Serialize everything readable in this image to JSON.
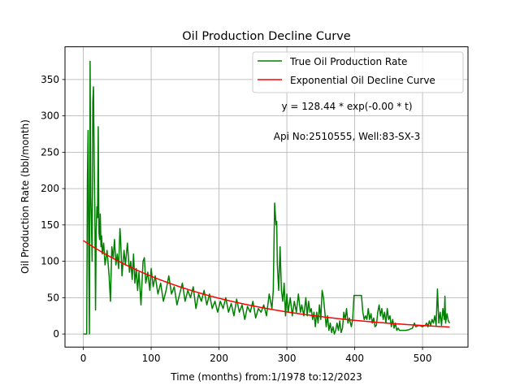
{
  "chart_data": {
    "type": "line",
    "title": "Oil Production Decline Curve",
    "xlabel": "Time (months) from:1/1978 to:12/2023",
    "ylabel": "Oil Production Rate (bbl/month)",
    "xlim": [
      -27,
      567
    ],
    "ylim": [
      -18,
      395
    ],
    "xticks": [
      0,
      100,
      200,
      300,
      400,
      500
    ],
    "yticks": [
      0,
      50,
      100,
      150,
      200,
      250,
      300,
      350
    ],
    "grid": true,
    "legend_position": "top-right",
    "annotations": [
      "y = 128.44 * exp(-0.00 * t)",
      "Api No:2510555, Well:83-SX-3"
    ],
    "series": [
      {
        "name": "True Oil Production Rate",
        "color": "#008000",
        "points": [
          [
            0,
            0
          ],
          [
            5,
            0
          ],
          [
            6,
            210
          ],
          [
            7,
            280
          ],
          [
            8,
            100
          ],
          [
            9,
            0
          ],
          [
            10,
            375
          ],
          [
            11,
            190
          ],
          [
            12,
            150
          ],
          [
            13,
            100
          ],
          [
            14,
            320
          ],
          [
            15,
            340
          ],
          [
            16,
            240
          ],
          [
            17,
            170
          ],
          [
            18,
            33
          ],
          [
            19,
            140
          ],
          [
            20,
            175
          ],
          [
            21,
            160
          ],
          [
            22,
            285
          ],
          [
            23,
            140
          ],
          [
            24,
            130
          ],
          [
            25,
            165
          ],
          [
            26,
            120
          ],
          [
            27,
            135
          ],
          [
            28,
            110
          ],
          [
            30,
            125
          ],
          [
            32,
            95
          ],
          [
            35,
            115
          ],
          [
            38,
            80
          ],
          [
            40,
            45
          ],
          [
            42,
            120
          ],
          [
            44,
            105
          ],
          [
            46,
            130
          ],
          [
            48,
            95
          ],
          [
            50,
            110
          ],
          [
            52,
            90
          ],
          [
            54,
            145
          ],
          [
            55,
            130
          ],
          [
            57,
            80
          ],
          [
            60,
            115
          ],
          [
            62,
            95
          ],
          [
            65,
            125
          ],
          [
            68,
            85
          ],
          [
            70,
            100
          ],
          [
            72,
            75
          ],
          [
            74,
            110
          ],
          [
            76,
            70
          ],
          [
            78,
            90
          ],
          [
            80,
            60
          ],
          [
            82,
            85
          ],
          [
            85,
            40
          ],
          [
            88,
            100
          ],
          [
            90,
            105
          ],
          [
            92,
            70
          ],
          [
            95,
            85
          ],
          [
            98,
            60
          ],
          [
            100,
            90
          ],
          [
            103,
            65
          ],
          [
            106,
            80
          ],
          [
            110,
            55
          ],
          [
            114,
            70
          ],
          [
            118,
            45
          ],
          [
            122,
            60
          ],
          [
            126,
            80
          ],
          [
            130,
            55
          ],
          [
            134,
            65
          ],
          [
            138,
            40
          ],
          [
            142,
            55
          ],
          [
            146,
            70
          ],
          [
            150,
            45
          ],
          [
            154,
            60
          ],
          [
            158,
            50
          ],
          [
            162,
            65
          ],
          [
            166,
            35
          ],
          [
            170,
            55
          ],
          [
            174,
            45
          ],
          [
            178,
            60
          ],
          [
            182,
            40
          ],
          [
            186,
            55
          ],
          [
            190,
            35
          ],
          [
            194,
            45
          ],
          [
            198,
            30
          ],
          [
            202,
            45
          ],
          [
            206,
            35
          ],
          [
            210,
            50
          ],
          [
            214,
            30
          ],
          [
            218,
            42
          ],
          [
            222,
            25
          ],
          [
            226,
            48
          ],
          [
            230,
            30
          ],
          [
            234,
            40
          ],
          [
            238,
            20
          ],
          [
            242,
            38
          ],
          [
            246,
            30
          ],
          [
            250,
            45
          ],
          [
            254,
            22
          ],
          [
            258,
            35
          ],
          [
            262,
            30
          ],
          [
            266,
            40
          ],
          [
            270,
            25
          ],
          [
            274,
            55
          ],
          [
            278,
            35
          ],
          [
            280,
            60
          ],
          [
            282,
            180
          ],
          [
            284,
            150
          ],
          [
            285,
            155
          ],
          [
            286,
            95
          ],
          [
            288,
            60
          ],
          [
            290,
            120
          ],
          [
            292,
            60
          ],
          [
            294,
            45
          ],
          [
            296,
            70
          ],
          [
            298,
            25
          ],
          [
            300,
            55
          ],
          [
            302,
            30
          ],
          [
            305,
            50
          ],
          [
            308,
            25
          ],
          [
            311,
            45
          ],
          [
            314,
            30
          ],
          [
            317,
            55
          ],
          [
            320,
            30
          ],
          [
            322,
            40
          ],
          [
            325,
            25
          ],
          [
            328,
            50
          ],
          [
            330,
            25
          ],
          [
            332,
            45
          ],
          [
            334,
            30
          ],
          [
            336,
            35
          ],
          [
            338,
            20
          ],
          [
            340,
            30
          ],
          [
            342,
            10
          ],
          [
            344,
            30
          ],
          [
            346,
            15
          ],
          [
            348,
            40
          ],
          [
            350,
            20
          ],
          [
            352,
            60
          ],
          [
            354,
            50
          ],
          [
            356,
            30
          ],
          [
            358,
            10
          ],
          [
            360,
            25
          ],
          [
            362,
            5
          ],
          [
            364,
            15
          ],
          [
            366,
            2
          ],
          [
            368,
            10
          ],
          [
            370,
            0
          ],
          [
            372,
            5
          ],
          [
            374,
            15
          ],
          [
            376,
            5
          ],
          [
            378,
            18
          ],
          [
            380,
            2
          ],
          [
            382,
            8
          ],
          [
            384,
            30
          ],
          [
            386,
            20
          ],
          [
            388,
            35
          ],
          [
            390,
            15
          ],
          [
            392,
            22
          ],
          [
            395,
            10
          ],
          [
            397,
            20
          ],
          [
            399,
            53
          ],
          [
            402,
            53
          ],
          [
            406,
            53
          ],
          [
            410,
            53
          ],
          [
            412,
            30
          ],
          [
            414,
            20
          ],
          [
            416,
            25
          ],
          [
            418,
            20
          ],
          [
            420,
            35
          ],
          [
            422,
            20
          ],
          [
            424,
            28
          ],
          [
            426,
            15
          ],
          [
            428,
            22
          ],
          [
            430,
            10
          ],
          [
            432,
            12
          ],
          [
            434,
            30
          ],
          [
            436,
            40
          ],
          [
            438,
            25
          ],
          [
            440,
            35
          ],
          [
            442,
            20
          ],
          [
            444,
            30
          ],
          [
            446,
            15
          ],
          [
            448,
            35
          ],
          [
            450,
            20
          ],
          [
            452,
            25
          ],
          [
            454,
            10
          ],
          [
            456,
            20
          ],
          [
            458,
            8
          ],
          [
            460,
            15
          ],
          [
            462,
            5
          ],
          [
            464,
            8
          ],
          [
            466,
            5
          ],
          [
            470,
            5
          ],
          [
            475,
            5
          ],
          [
            480,
            6
          ],
          [
            485,
            8
          ],
          [
            488,
            15
          ],
          [
            490,
            10
          ],
          [
            495,
            12
          ],
          [
            500,
            10
          ],
          [
            504,
            12
          ],
          [
            506,
            15
          ],
          [
            508,
            10
          ],
          [
            510,
            18
          ],
          [
            512,
            12
          ],
          [
            514,
            20
          ],
          [
            516,
            15
          ],
          [
            518,
            25
          ],
          [
            520,
            12
          ],
          [
            522,
            62
          ],
          [
            524,
            15
          ],
          [
            526,
            30
          ],
          [
            528,
            12
          ],
          [
            530,
            35
          ],
          [
            532,
            20
          ],
          [
            533,
            52
          ],
          [
            534,
            15
          ],
          [
            536,
            28
          ],
          [
            538,
            18
          ],
          [
            540,
            15
          ]
        ]
      },
      {
        "name": "Exponential Oil Decline Curve",
        "color": "#ff0000",
        "a": 128.44,
        "b": 0.0048,
        "x_range": [
          0,
          540
        ]
      }
    ]
  }
}
